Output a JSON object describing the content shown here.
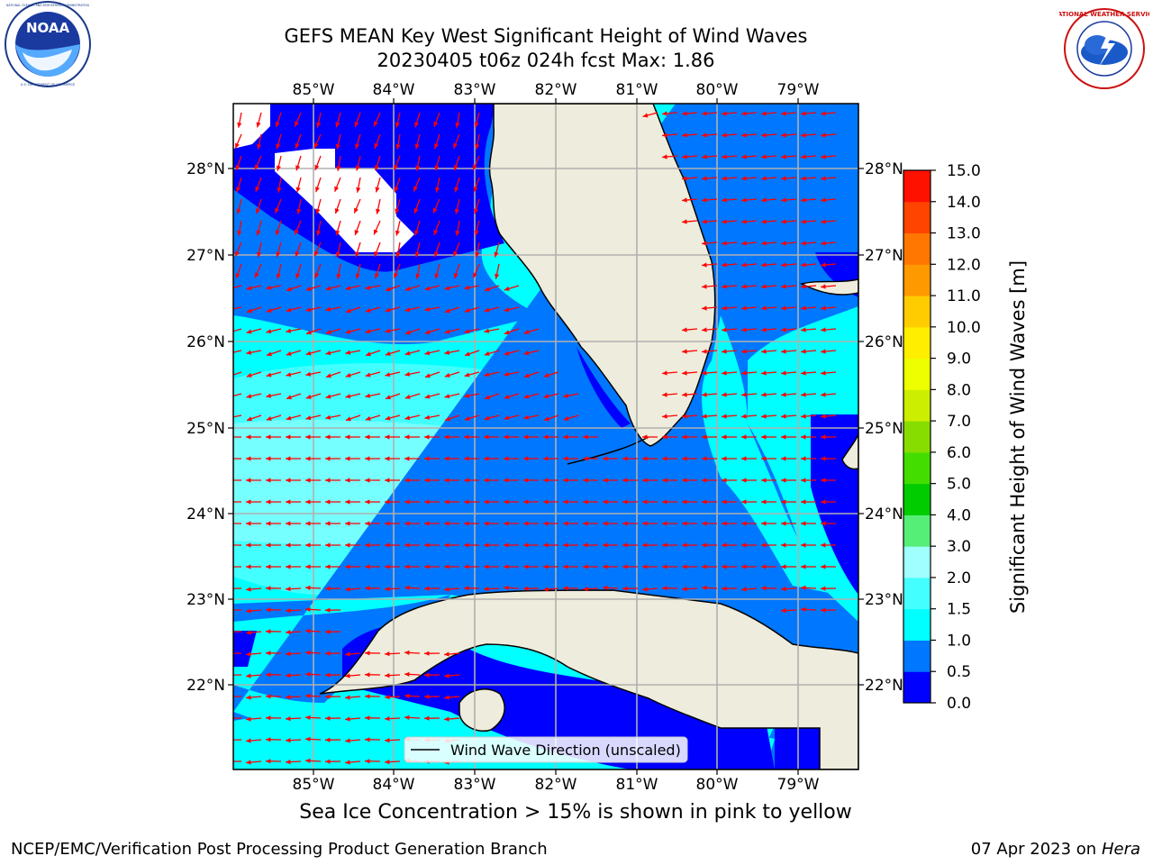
{
  "header": {
    "title_line1": "GEFS MEAN Key West Significant Height of Wind Waves",
    "title_line2": "20230405 t06z 024h fcst   Max: 1.86"
  },
  "logos": {
    "left": "noaa-logo",
    "right": "national-weather-service-logo",
    "noaa_text": "NOAA",
    "noaa_ring_text": "NATIONAL OCEANIC AND ATMOSPHERIC ADMINISTRATION",
    "noaa_bottom_text": "U.S. DEPARTMENT OF COMMERCE",
    "nws_ring_text": "NATIONAL WEATHER SERVICE"
  },
  "map": {
    "lon_ticks": [
      "85°W",
      "84°W",
      "83°W",
      "82°W",
      "81°W",
      "80°W",
      "79°W"
    ],
    "lat_ticks": [
      "28°N",
      "27°N",
      "26°N",
      "25°N",
      "24°N",
      "23°N",
      "22°N"
    ],
    "legend_label": "Wind Wave Direction (unscaled)",
    "land_color": "#eeecdc",
    "arrow_color": "#ff0000",
    "no_data_color": "#ffffff"
  },
  "colorbar": {
    "label": "Significant Height of Wind Waves [m]",
    "ticks": [
      "15.0",
      "14.0",
      "13.0",
      "12.0",
      "11.0",
      "10.0",
      "9.0",
      "8.0",
      "7.0",
      "6.0",
      "5.0",
      "4.0",
      "3.0",
      "2.0",
      "1.5",
      "1.0",
      "0.5",
      "0.0"
    ],
    "colors_bottom_to_top": [
      "#0000ff",
      "#0077ff",
      "#00ffff",
      "#44ffff",
      "#a0ffff",
      "#55ee77",
      "#00cc00",
      "#44dd00",
      "#88dd00",
      "#ccee00",
      "#eeff00",
      "#ffee00",
      "#ffcc00",
      "#ff9900",
      "#ff7700",
      "#ff4400",
      "#ff1100"
    ]
  },
  "caption": "Sea Ice Concentration > 15% is shown in pink to yellow",
  "footer": {
    "left": "NCEP/EMC/Verification Post Processing Product Generation Branch",
    "right_date": "07 Apr 2023 on",
    "right_host": "Hera"
  }
}
